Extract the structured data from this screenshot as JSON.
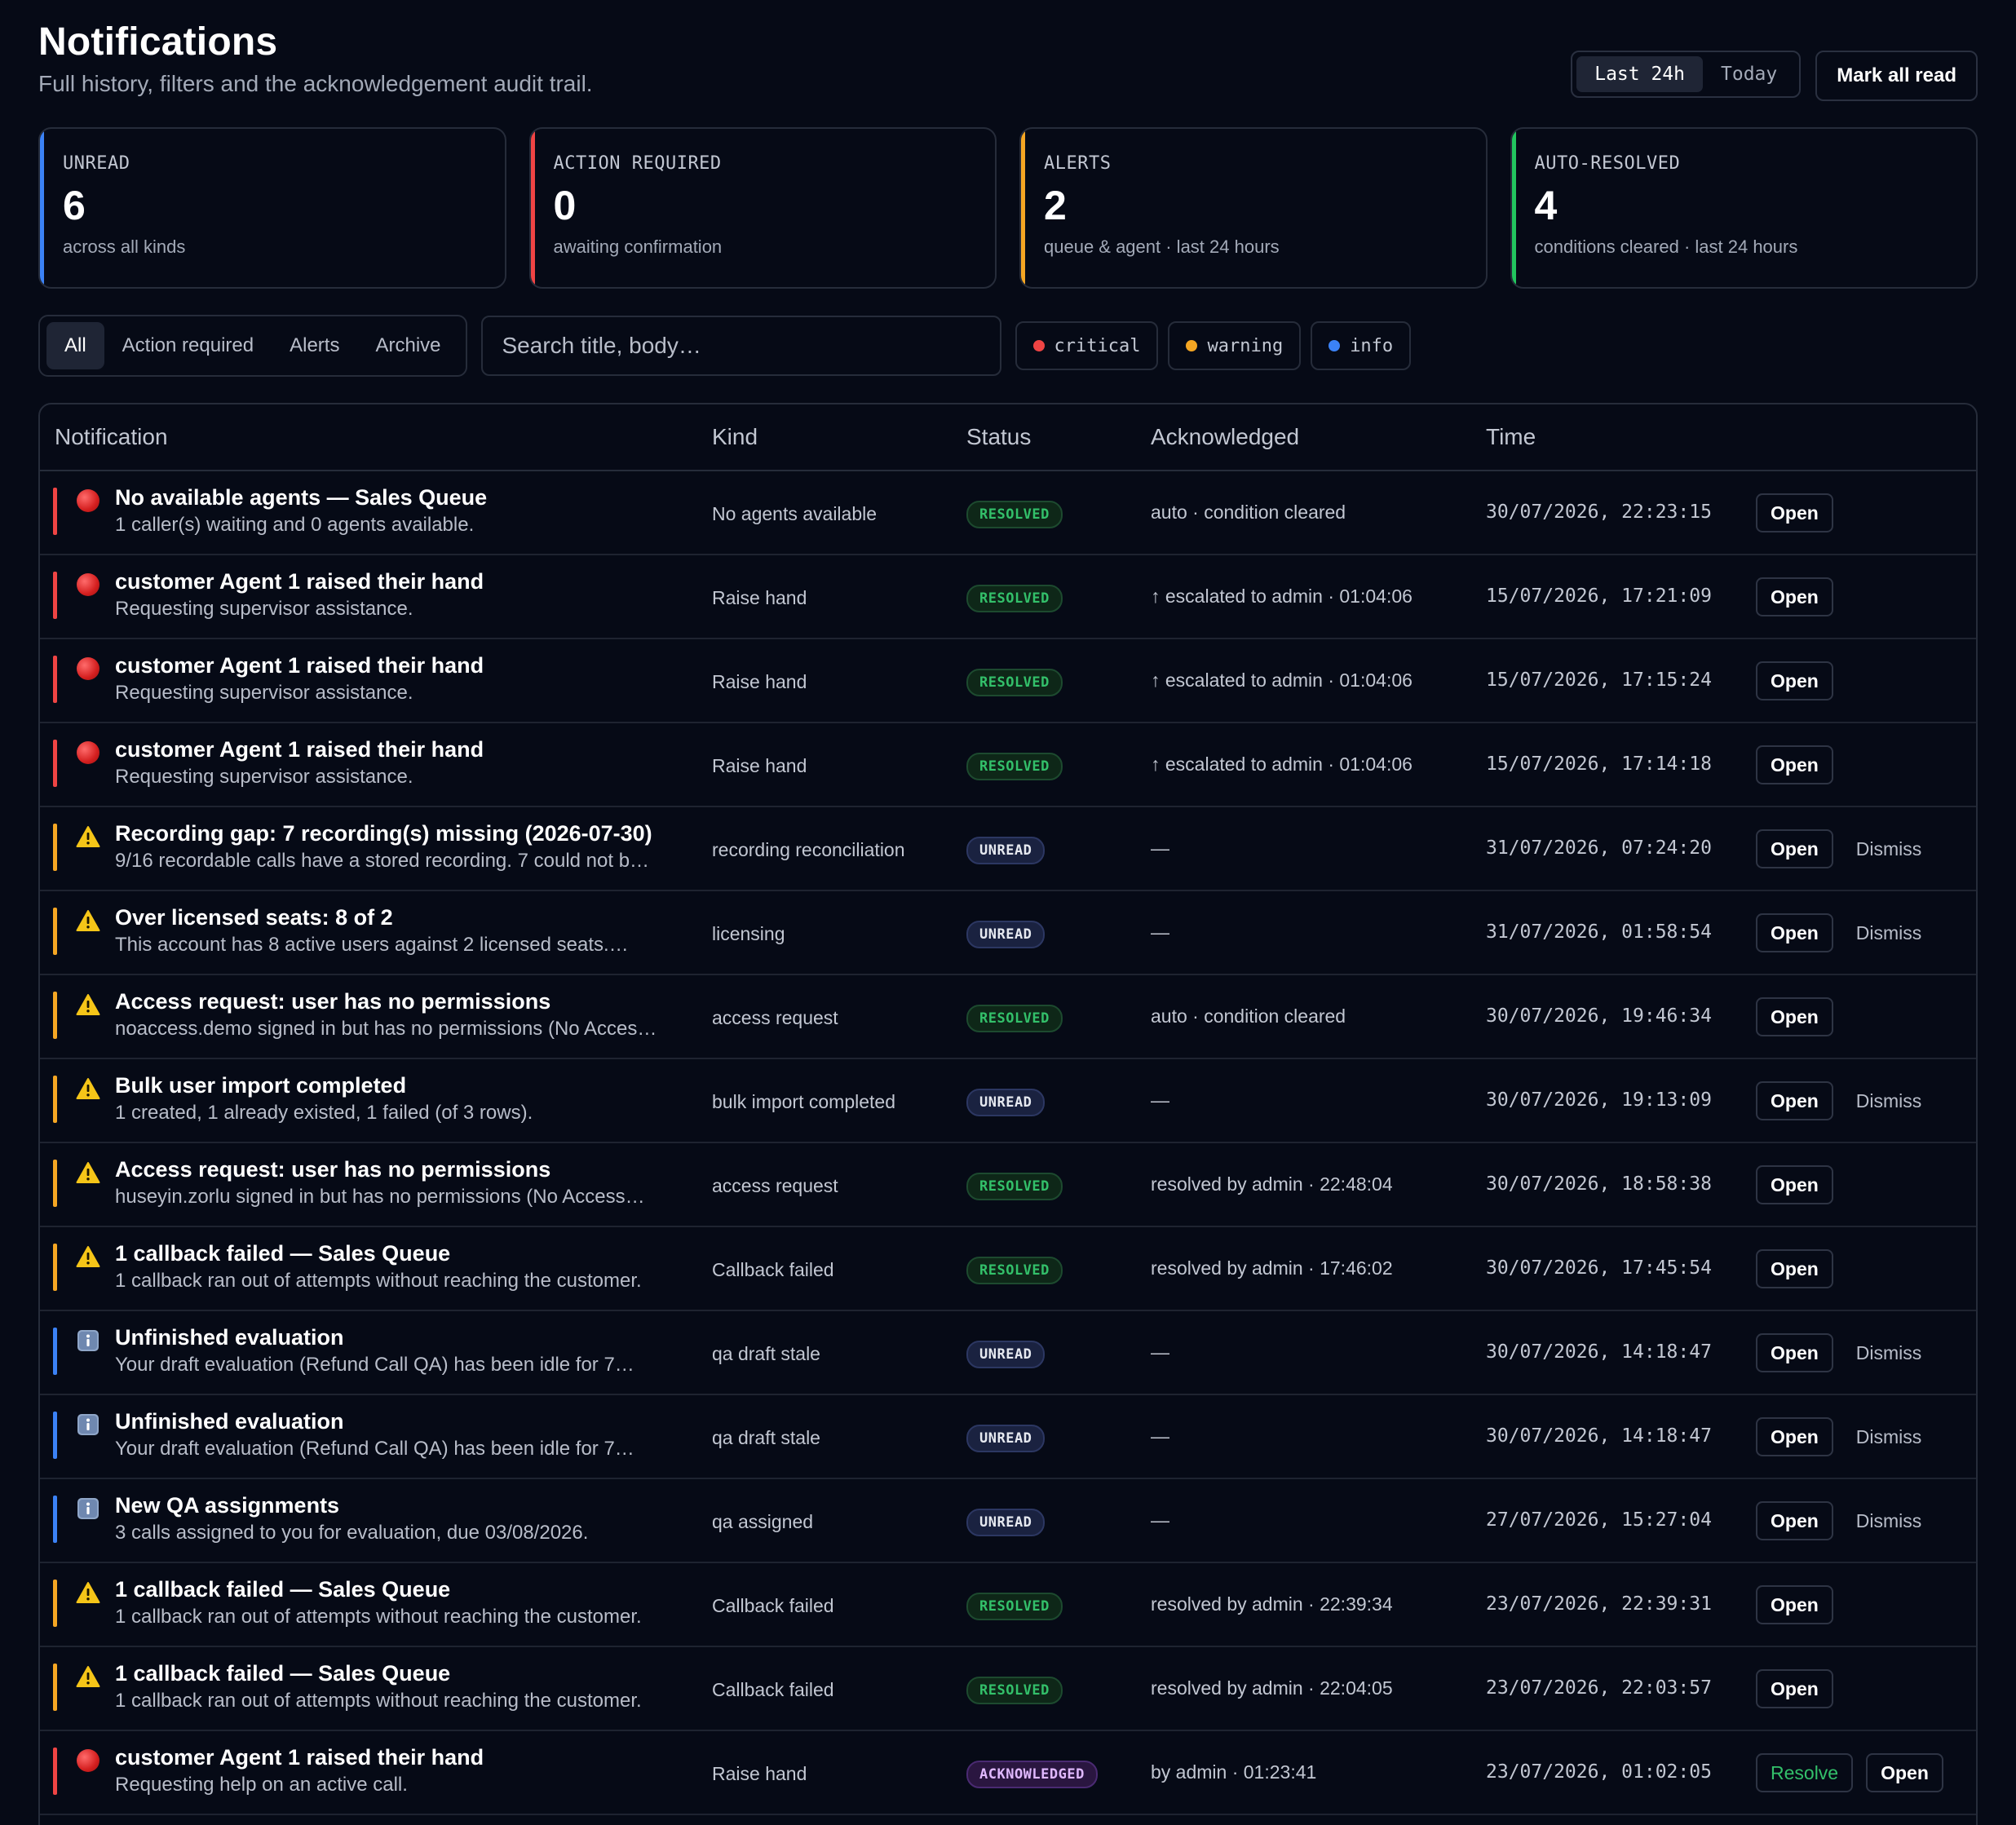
{
  "header": {
    "title": "Notifications",
    "subtitle": "Full history, filters and the acknowledgement audit trail.",
    "range_options": [
      "Last 24h",
      "Today"
    ],
    "range_selected": "Last 24h",
    "mark_all_read": "Mark all read"
  },
  "stats": [
    {
      "label": "UNREAD",
      "value": "6",
      "sub": "across all kinds",
      "accent": "#3b82f6"
    },
    {
      "label": "ACTION REQUIRED",
      "value": "0",
      "sub": "awaiting confirmation",
      "accent": "#ef4444"
    },
    {
      "label": "ALERTS",
      "value": "2",
      "sub": "queue & agent · last 24 hours",
      "accent": "#f5a623"
    },
    {
      "label": "AUTO-RESOLVED",
      "value": "4",
      "sub": "conditions cleared · last 24 hours",
      "accent": "#22c55e"
    }
  ],
  "filters": {
    "tabs": [
      "All",
      "Action required",
      "Alerts",
      "Archive"
    ],
    "active_tab": "All",
    "search_placeholder": "Search title, body…",
    "severity": [
      {
        "label": "critical",
        "color": "#ef4444"
      },
      {
        "label": "warning",
        "color": "#f5a623"
      },
      {
        "label": "info",
        "color": "#3b82f6"
      }
    ]
  },
  "table": {
    "columns": [
      "Notification",
      "Kind",
      "Status",
      "Acknowledged",
      "Time"
    ],
    "colors": {
      "critical": "#ef4444",
      "warning": "#f5a623",
      "info": "#3b82f6"
    },
    "rows": [
      {
        "severity": "critical",
        "title": "No available agents — Sales Queue",
        "body": "1 caller(s) waiting and 0 agents available.",
        "kind": "No agents available",
        "status": "RESOLVED",
        "ack": "auto · condition cleared",
        "time": "30/07/2026, 22:23:15",
        "actions": [
          "Open"
        ]
      },
      {
        "severity": "critical",
        "title": "customer Agent 1 raised their hand",
        "body": "Requesting supervisor assistance.",
        "kind": "Raise hand",
        "status": "RESOLVED",
        "ack": "↑ escalated to admin · 01:04:06",
        "time": "15/07/2026, 17:21:09",
        "actions": [
          "Open"
        ]
      },
      {
        "severity": "critical",
        "title": "customer Agent 1 raised their hand",
        "body": "Requesting supervisor assistance.",
        "kind": "Raise hand",
        "status": "RESOLVED",
        "ack": "↑ escalated to admin · 01:04:06",
        "time": "15/07/2026, 17:15:24",
        "actions": [
          "Open"
        ]
      },
      {
        "severity": "critical",
        "title": "customer Agent 1 raised their hand",
        "body": "Requesting supervisor assistance.",
        "kind": "Raise hand",
        "status": "RESOLVED",
        "ack": "↑ escalated to admin · 01:04:06",
        "time": "15/07/2026, 17:14:18",
        "actions": [
          "Open"
        ]
      },
      {
        "severity": "warning",
        "title": "Recording gap: 7 recording(s) missing (2026-07-30)",
        "body": "9/16 recordable calls have a stored recording. 7 could not b…",
        "kind": "recording reconciliation",
        "status": "UNREAD",
        "ack": "—",
        "time": "31/07/2026, 07:24:20",
        "actions": [
          "Open",
          "Dismiss"
        ]
      },
      {
        "severity": "warning",
        "title": "Over licensed seats: 8 of 2",
        "body": "This account has 8 active users against 2 licensed seats.…",
        "kind": "licensing",
        "status": "UNREAD",
        "ack": "—",
        "time": "31/07/2026, 01:58:54",
        "actions": [
          "Open",
          "Dismiss"
        ]
      },
      {
        "severity": "warning",
        "title": "Access request: user has no permissions",
        "body": "noaccess.demo signed in but has no permissions (No Acces…",
        "kind": "access request",
        "status": "RESOLVED",
        "ack": "auto · condition cleared",
        "time": "30/07/2026, 19:46:34",
        "actions": [
          "Open"
        ]
      },
      {
        "severity": "warning",
        "title": "Bulk user import completed",
        "body": "1 created, 1 already existed, 1 failed (of 3 rows).",
        "kind": "bulk import completed",
        "status": "UNREAD",
        "ack": "—",
        "time": "30/07/2026, 19:13:09",
        "actions": [
          "Open",
          "Dismiss"
        ]
      },
      {
        "severity": "warning",
        "title": "Access request: user has no permissions",
        "body": "huseyin.zorlu signed in but has no permissions (No Access…",
        "kind": "access request",
        "status": "RESOLVED",
        "ack": "resolved by admin · 22:48:04",
        "time": "30/07/2026, 18:58:38",
        "actions": [
          "Open"
        ]
      },
      {
        "severity": "warning",
        "title": "1 callback failed — Sales Queue",
        "body": "1 callback ran out of attempts without reaching the customer.",
        "kind": "Callback failed",
        "status": "RESOLVED",
        "ack": "resolved by admin · 17:46:02",
        "time": "30/07/2026, 17:45:54",
        "actions": [
          "Open"
        ]
      },
      {
        "severity": "info",
        "title": "Unfinished evaluation",
        "body": "Your draft evaluation (Refund Call QA) has been idle for 7…",
        "kind": "qa draft stale",
        "status": "UNREAD",
        "ack": "—",
        "time": "30/07/2026, 14:18:47",
        "actions": [
          "Open",
          "Dismiss"
        ]
      },
      {
        "severity": "info",
        "title": "Unfinished evaluation",
        "body": "Your draft evaluation (Refund Call QA) has been idle for 7…",
        "kind": "qa draft stale",
        "status": "UNREAD",
        "ack": "—",
        "time": "30/07/2026, 14:18:47",
        "actions": [
          "Open",
          "Dismiss"
        ]
      },
      {
        "severity": "info",
        "title": "New QA assignments",
        "body": "3 calls assigned to you for evaluation, due 03/08/2026.",
        "kind": "qa assigned",
        "status": "UNREAD",
        "ack": "—",
        "time": "27/07/2026, 15:27:04",
        "actions": [
          "Open",
          "Dismiss"
        ]
      },
      {
        "severity": "warning",
        "title": "1 callback failed — Sales Queue",
        "body": "1 callback ran out of attempts without reaching the customer.",
        "kind": "Callback failed",
        "status": "RESOLVED",
        "ack": "resolved by admin · 22:39:34",
        "time": "23/07/2026, 22:39:31",
        "actions": [
          "Open"
        ]
      },
      {
        "severity": "warning",
        "title": "1 callback failed — Sales Queue",
        "body": "1 callback ran out of attempts without reaching the customer.",
        "kind": "Callback failed",
        "status": "RESOLVED",
        "ack": "resolved by admin · 22:04:05",
        "time": "23/07/2026, 22:03:57",
        "actions": [
          "Open"
        ]
      },
      {
        "severity": "critical",
        "title": "customer Agent 1 raised their hand",
        "body": "Requesting help on an active call.",
        "kind": "Raise hand",
        "status": "ACKNOWLEDGED",
        "ack": "by admin · 01:23:41",
        "time": "23/07/2026, 01:02:05",
        "actions": [
          "Resolve",
          "Open"
        ]
      }
    ]
  }
}
